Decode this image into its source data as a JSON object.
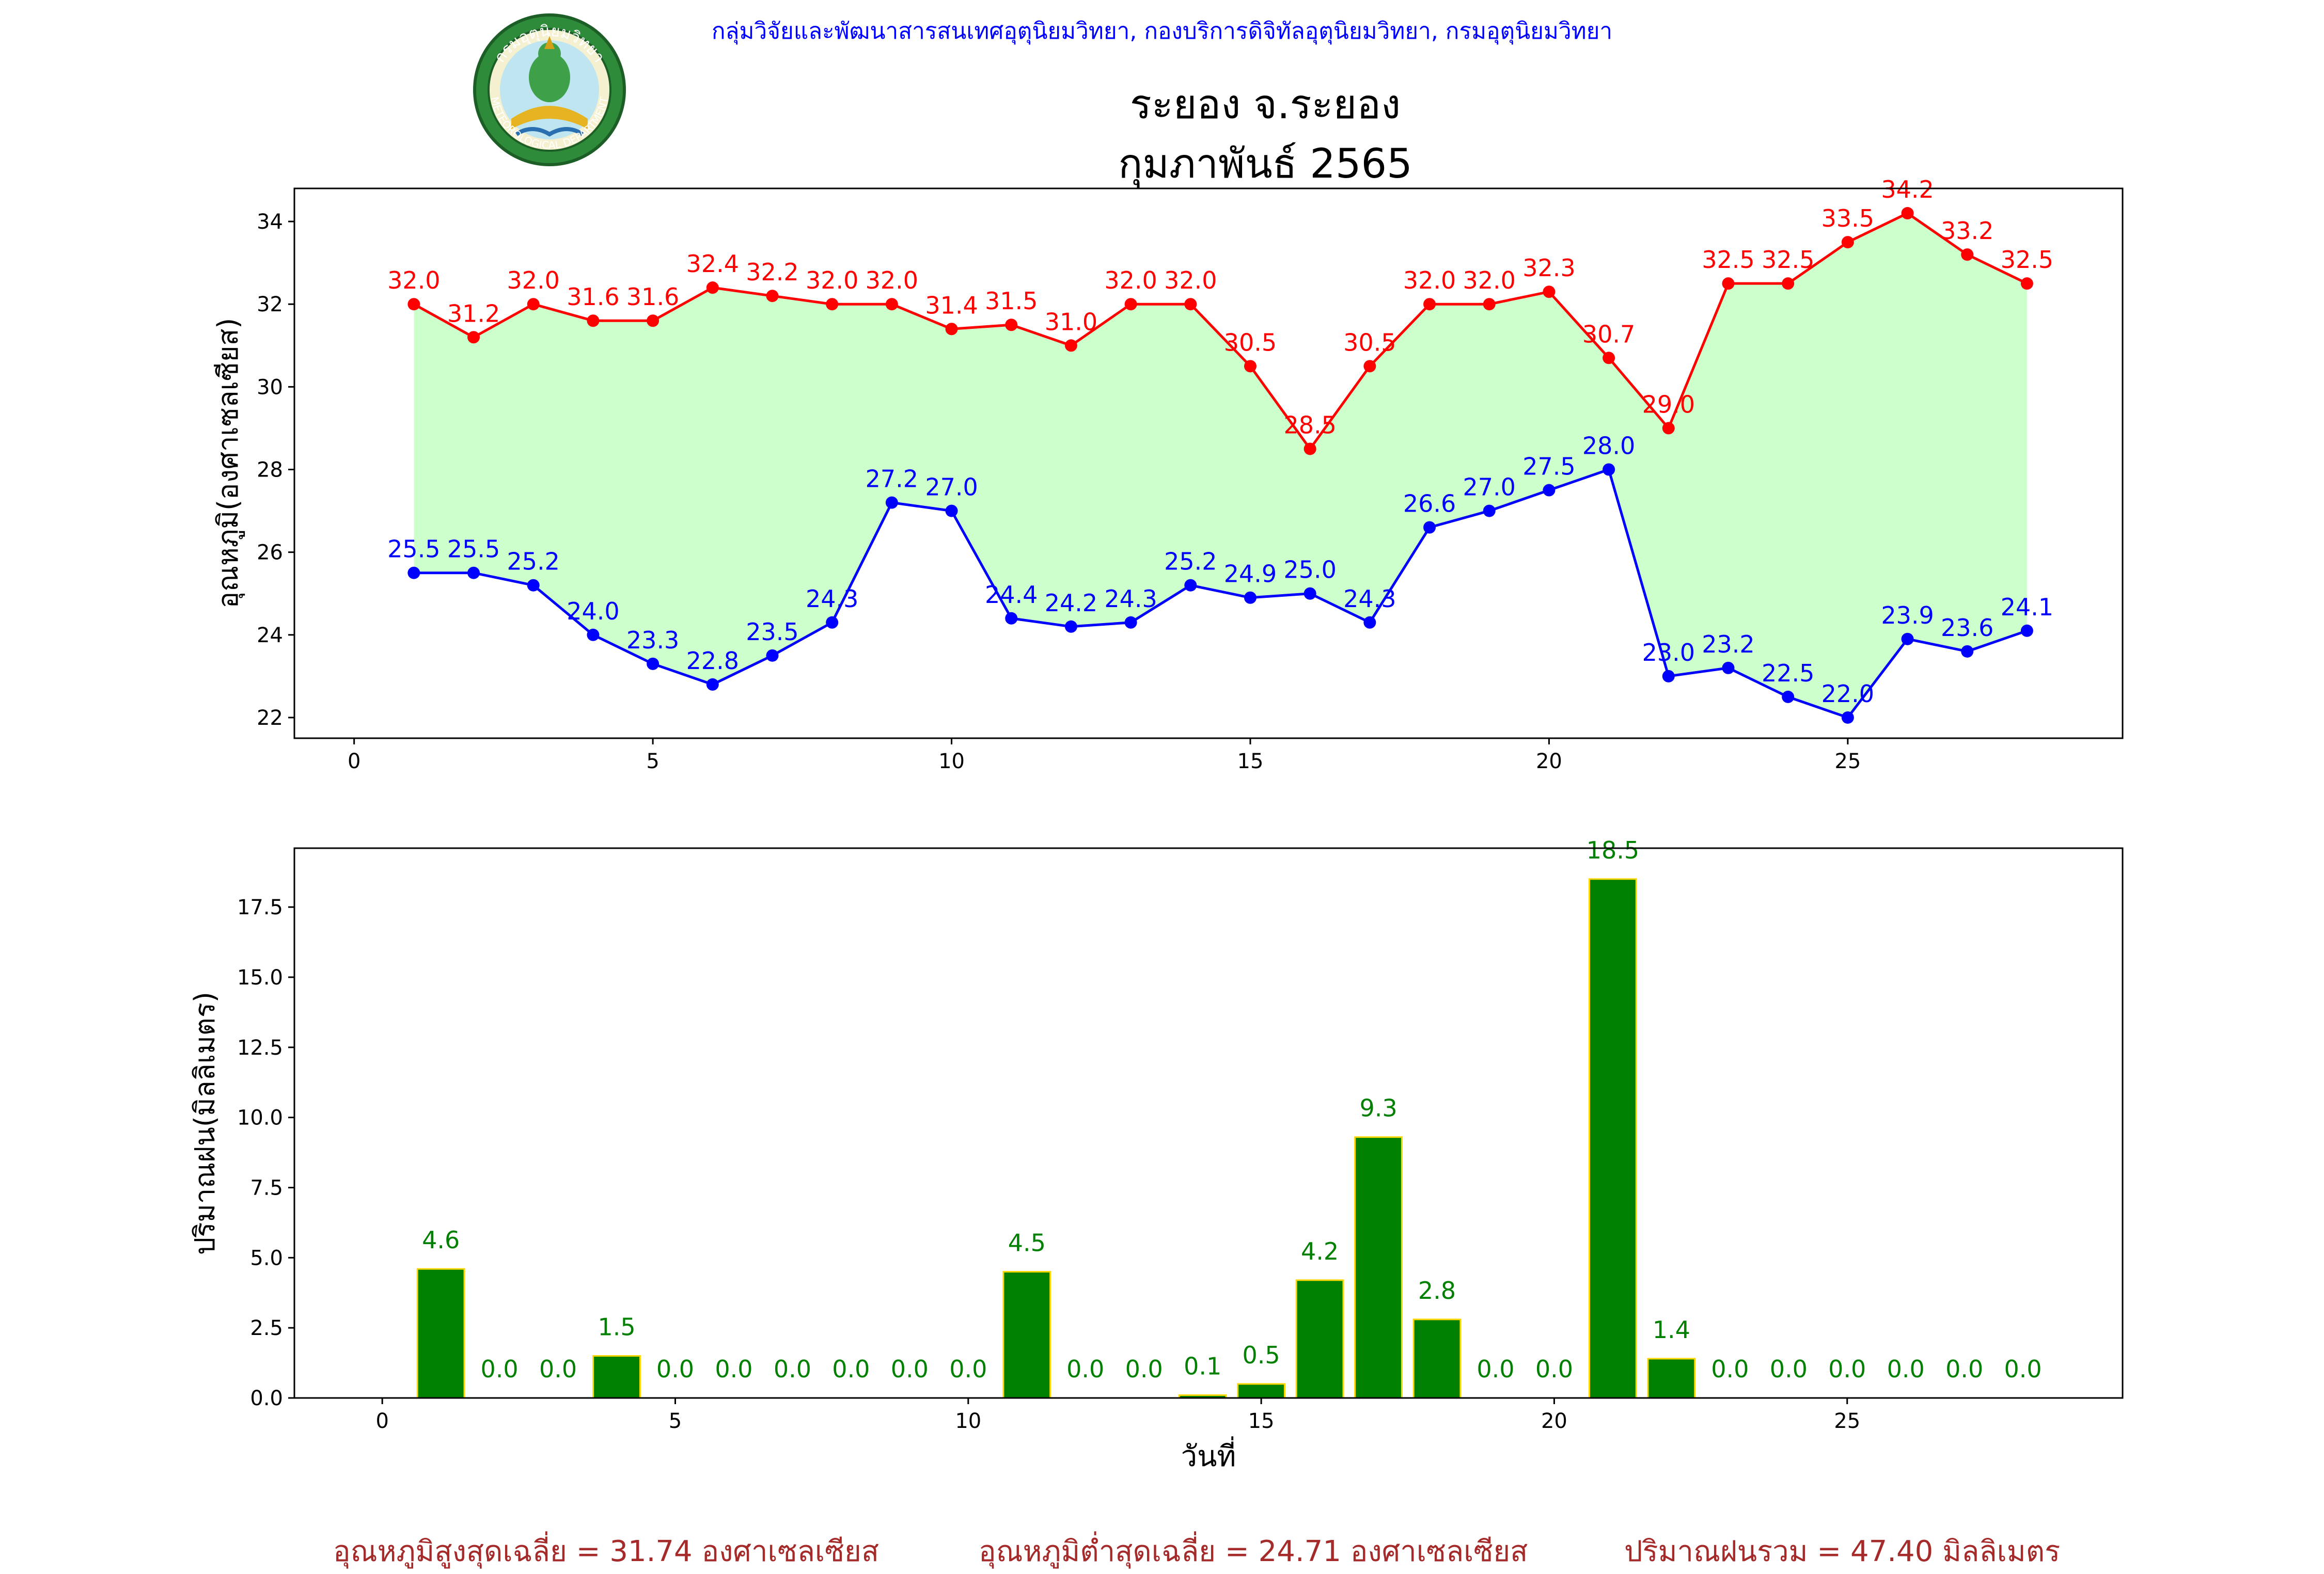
{
  "header": {
    "department_line": "กลุ่มวิจัยและพัฒนาสารสนเทศอุตุนิยมวิทยา, กองบริการดิจิทัลอุตุนิยมวิทยา, กรมอุตุนิยมวิทยา",
    "logo_text_top": "กรมอุตุนิยมวิทยา",
    "logo_text_bottom": "METEOROLOGICAL DEPARTMENT"
  },
  "title": {
    "station": "ระยอง จ.ระยอง",
    "period": "กุมภาพันธ์ 2565"
  },
  "colors": {
    "max_temp": "#ff0000",
    "min_temp": "#0000ff",
    "fill": "#ccffcc",
    "rain_bar": "#008000",
    "rain_edge": "#ffd700",
    "rain_label": "#008000",
    "summary_text": "#a52a2a"
  },
  "chart_data": [
    {
      "type": "line",
      "ylabel": "อุณหภูมิ(องศาเซลเซียส)",
      "xlabel": "",
      "xlim": [
        -1,
        29.6
      ],
      "ylim": [
        21.5,
        34.8
      ],
      "xticks": [
        0,
        5,
        10,
        15,
        20,
        25
      ],
      "yticks": [
        22,
        24,
        26,
        28,
        30,
        32,
        34
      ],
      "grid": false,
      "x": [
        1,
        2,
        3,
        4,
        5,
        6,
        7,
        8,
        9,
        10,
        11,
        12,
        13,
        14,
        15,
        16,
        17,
        18,
        19,
        20,
        21,
        22,
        23,
        24,
        25,
        26,
        27,
        28
      ],
      "series": [
        {
          "key": "max",
          "values": [
            32.0,
            31.2,
            32.0,
            31.6,
            31.6,
            32.4,
            32.2,
            32.0,
            32.0,
            31.4,
            31.5,
            31.0,
            32.0,
            32.0,
            30.5,
            28.5,
            30.5,
            32.0,
            32.0,
            32.3,
            30.7,
            29.0,
            32.5,
            32.5,
            33.5,
            34.2,
            33.2,
            32.5
          ]
        },
        {
          "key": "min",
          "values": [
            25.5,
            25.5,
            25.2,
            24.0,
            23.3,
            22.8,
            23.5,
            24.3,
            27.2,
            27.0,
            24.4,
            24.2,
            24.3,
            25.2,
            24.9,
            25.0,
            24.3,
            26.6,
            27.0,
            27.5,
            28.0,
            23.0,
            23.2,
            22.5,
            22.0,
            23.9,
            23.6,
            24.1
          ]
        }
      ]
    },
    {
      "type": "bar",
      "ylabel": "ปริมาณฝน(มิลลิเมตร)",
      "xlabel": "วันที่",
      "xlim": [
        -1.5,
        29.7
      ],
      "ylim": [
        0,
        19.6
      ],
      "xticks": [
        0,
        5,
        10,
        15,
        20,
        25
      ],
      "yticks": [
        "0.0",
        "2.5",
        "5.0",
        "7.5",
        "10.0",
        "12.5",
        "15.0",
        "17.5"
      ],
      "grid": false,
      "x": [
        1,
        2,
        3,
        4,
        5,
        6,
        7,
        8,
        9,
        10,
        11,
        12,
        13,
        14,
        15,
        16,
        17,
        18,
        19,
        20,
        21,
        22,
        23,
        24,
        25,
        26,
        27,
        28
      ],
      "values": [
        4.6,
        0.0,
        0.0,
        1.5,
        0.0,
        0.0,
        0.0,
        0.0,
        0.0,
        0.0,
        4.5,
        0.0,
        0.0,
        0.1,
        0.5,
        4.2,
        9.3,
        2.8,
        0.0,
        0.0,
        18.5,
        1.4,
        0.0,
        0.0,
        0.0,
        0.0,
        0.0,
        0.0
      ]
    }
  ],
  "summary": {
    "avg_max": "อุณหภูมิสูงสุดเฉลี่ย = 31.74 องศาเซลเซียส",
    "avg_min": "อุณหภูมิต่ำสุดเฉลี่ย = 24.71 องศาเซลเซียส",
    "total_rain": "ปริมาณฝนรวม = 47.40 มิลลิเมตร"
  }
}
